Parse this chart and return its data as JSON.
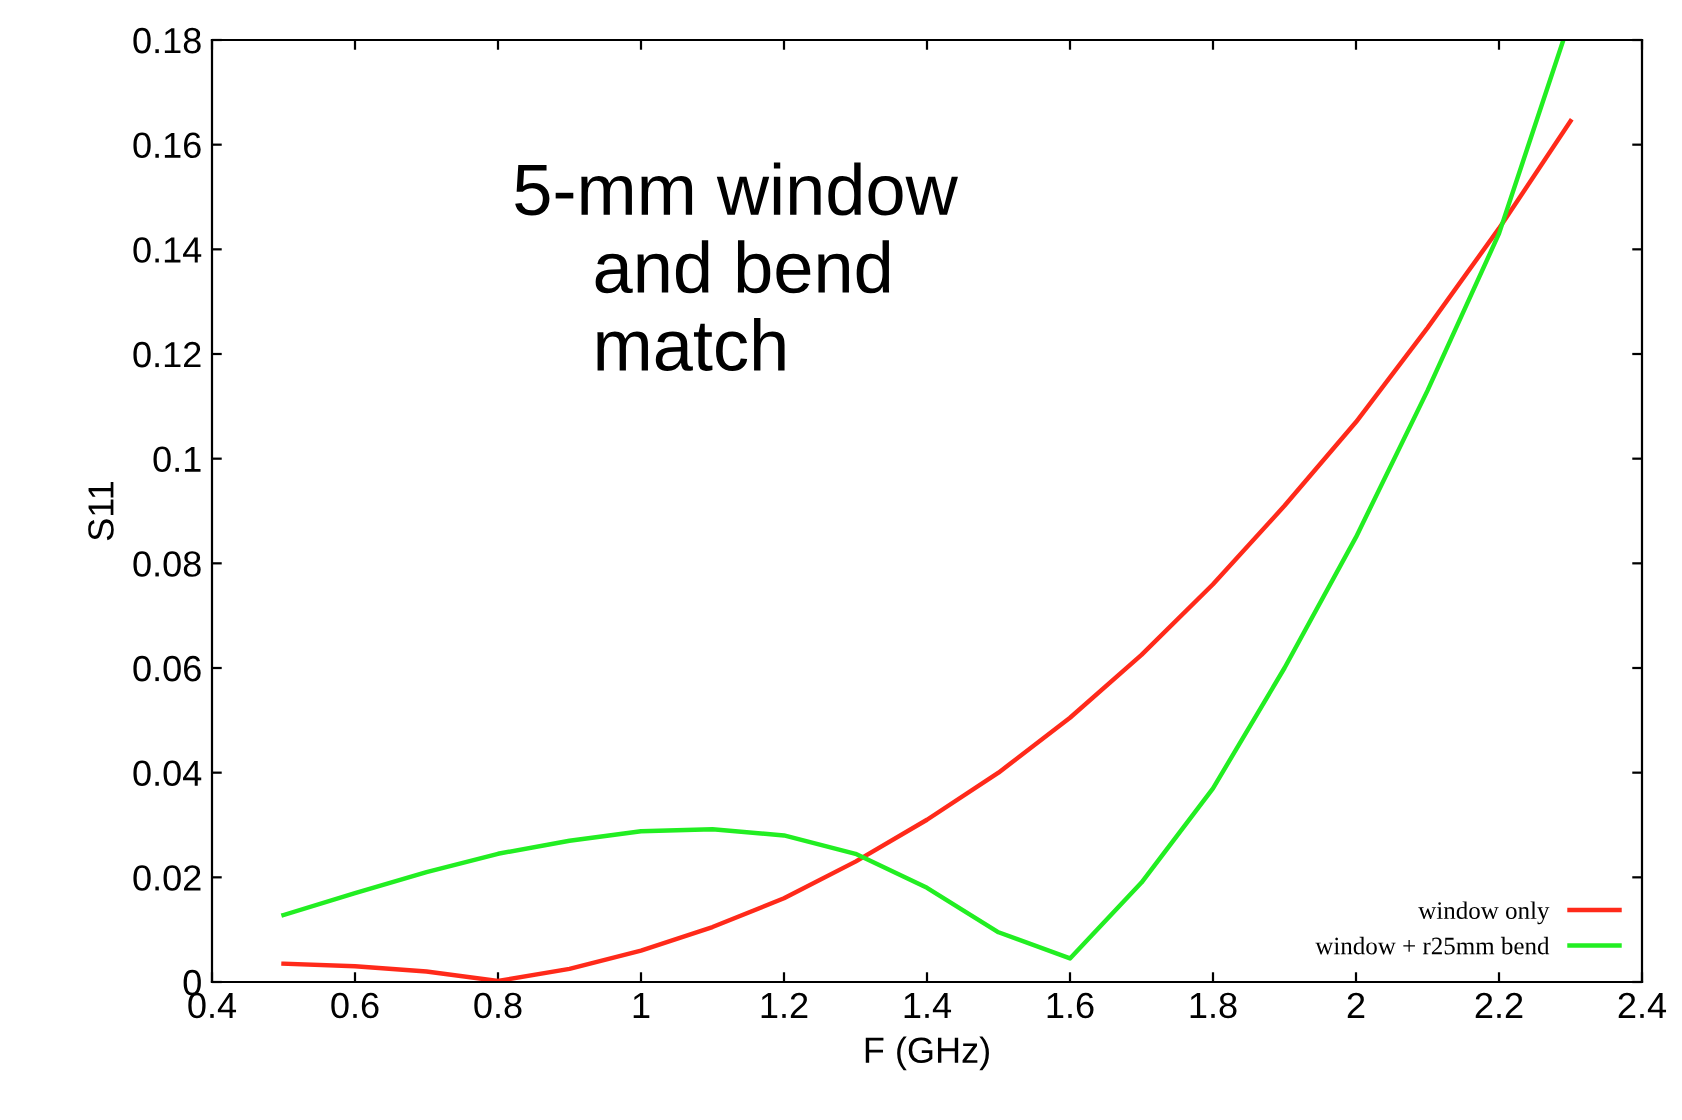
{
  "chart_data": {
    "type": "line",
    "xlabel": "F (GHz)",
    "ylabel": "S11",
    "annotations": [
      "5-mm window\n    and bend\n    match"
    ],
    "series": [
      {
        "name": "window only",
        "color": "#ff2a1a",
        "x": [
          0.5,
          0.6,
          0.7,
          0.8,
          0.9,
          1.0,
          1.1,
          1.2,
          1.3,
          1.4,
          1.5,
          1.6,
          1.7,
          1.8,
          1.9,
          2.0,
          2.1,
          2.2,
          2.3
        ],
        "values": [
          0.0035,
          0.003,
          0.002,
          0.0002,
          0.0025,
          0.006,
          0.0105,
          0.016,
          0.023,
          0.031,
          0.04,
          0.0505,
          0.0625,
          0.076,
          0.091,
          0.107,
          0.125,
          0.144,
          0.1645
        ]
      },
      {
        "name": "window + r25mm bend",
        "color": "#22ee22",
        "x": [
          0.5,
          0.6,
          0.7,
          0.8,
          0.9,
          1.0,
          1.1,
          1.2,
          1.3,
          1.4,
          1.5,
          1.6,
          1.7,
          1.8,
          1.9,
          2.0,
          2.1,
          2.2,
          2.29
        ],
        "values": [
          0.0128,
          0.017,
          0.021,
          0.0245,
          0.027,
          0.0288,
          0.0292,
          0.028,
          0.0245,
          0.018,
          0.0095,
          0.0045,
          0.019,
          0.037,
          0.06,
          0.085,
          0.113,
          0.143,
          0.18
        ]
      }
    ],
    "xlim": [
      0.4,
      2.4
    ],
    "xticks": [
      0.4,
      0.6,
      0.8,
      1,
      1.2,
      1.4,
      1.6,
      1.8,
      2,
      2.2,
      2.4
    ],
    "ylim": [
      0,
      0.18
    ],
    "yticks": [
      0,
      0.02,
      0.04,
      0.06,
      0.08,
      0.1,
      0.12,
      0.14,
      0.16,
      0.18
    ],
    "grid": false,
    "legend": "bottom right",
    "marker": "none",
    "line_style": "solid"
  }
}
